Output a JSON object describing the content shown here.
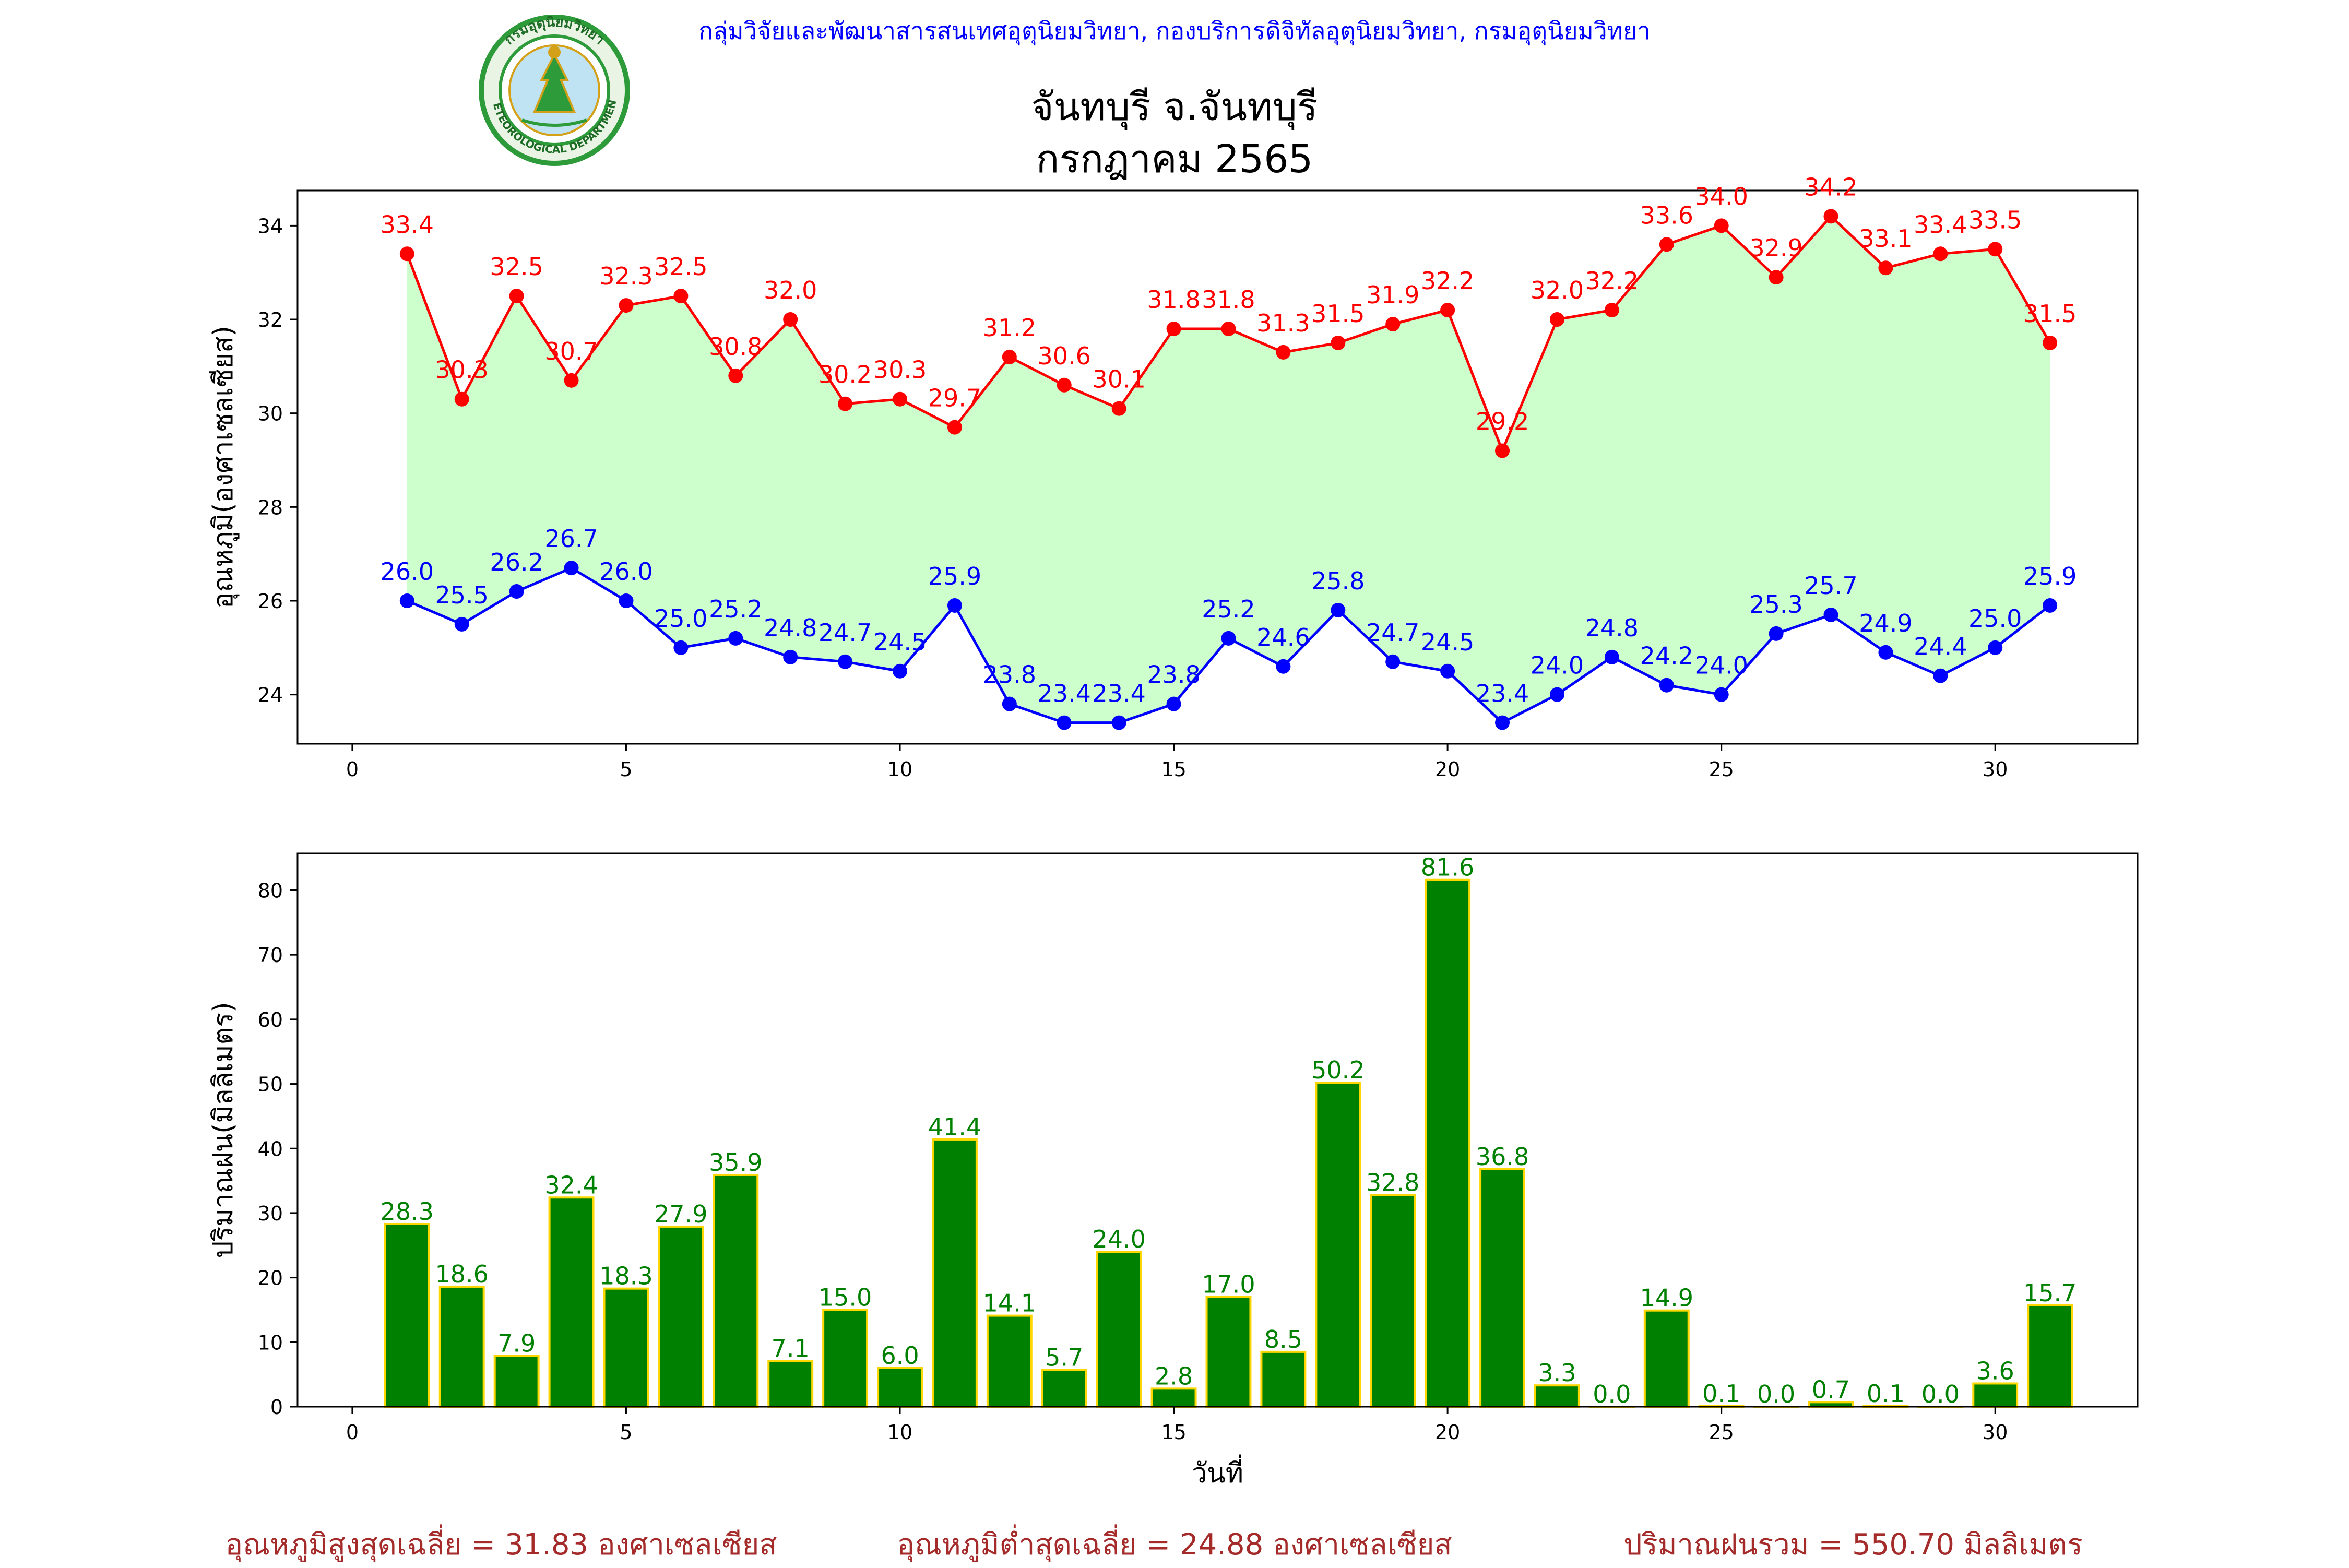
{
  "header": {
    "org_line": "กลุ่มวิจัยและพัฒนาสารสนเทศอุตุนิยมวิทยา, กองบริการดิจิทัลอุตุนิยมวิทยา, กรมอุตุนิยมวิทยา",
    "title_line1": "จันทบุรี จ.จันทบุรี",
    "title_line2": "กรกฎาคม 2565",
    "logo_text": "กรมอุตุนิยมวิทยา",
    "logo_text_en": "METEOROLOGICAL DEPARTMENT"
  },
  "colors": {
    "org_line": "#0000ff",
    "max_temp": "#ff0000",
    "min_temp": "#0000ff",
    "temp_band": "#ccffcc",
    "rain_bar": "#008000",
    "rain_bar_edge": "#ffd700",
    "rain_label": "#008000",
    "footer": "#a52a2a",
    "logo_green": "#2e9b3a",
    "logo_gold": "#d4a017"
  },
  "chart_data": [
    {
      "type": "line",
      "ylabel": "อุณหภูมิ(องศาเซลเซียส)",
      "xlabel": "",
      "xlim": [
        -1,
        32.6
      ],
      "ylim": [
        22.95,
        34.75
      ],
      "xticks": [
        0,
        5,
        10,
        15,
        20,
        25,
        30
      ],
      "yticks": [
        24,
        26,
        28,
        30,
        32,
        34
      ],
      "grid": false,
      "fill_between": true,
      "x": [
        1,
        2,
        3,
        4,
        5,
        6,
        7,
        8,
        9,
        10,
        11,
        12,
        13,
        14,
        15,
        16,
        17,
        18,
        19,
        20,
        21,
        22,
        23,
        24,
        25,
        26,
        27,
        28,
        29,
        30,
        31
      ],
      "series": [
        {
          "key": "max",
          "values": [
            33.4,
            30.3,
            32.5,
            30.7,
            32.3,
            32.5,
            30.8,
            32.0,
            30.2,
            30.3,
            29.7,
            31.2,
            30.6,
            30.1,
            31.8,
            31.8,
            31.3,
            31.5,
            31.9,
            32.2,
            29.2,
            32.0,
            32.2,
            33.6,
            34.0,
            32.9,
            34.2,
            33.1,
            33.4,
            33.5,
            31.5
          ]
        },
        {
          "key": "min",
          "values": [
            26.0,
            25.5,
            26.2,
            26.7,
            26.0,
            25.0,
            25.2,
            24.8,
            24.7,
            24.5,
            25.9,
            23.8,
            23.4,
            23.4,
            23.8,
            25.2,
            24.6,
            25.8,
            24.7,
            24.5,
            23.4,
            24.0,
            24.8,
            24.2,
            24.0,
            25.3,
            25.7,
            24.9,
            24.4,
            25.0,
            25.9
          ]
        }
      ]
    },
    {
      "type": "bar",
      "ylabel": "ปริมาณฝน(มิลลิเมตร)",
      "xlabel": "วันที่",
      "xlim": [
        -1,
        32.6
      ],
      "ylim": [
        0,
        85.7
      ],
      "xticks": [
        0,
        5,
        10,
        15,
        20,
        25,
        30
      ],
      "yticks": [
        0,
        10,
        20,
        30,
        40,
        50,
        60,
        70,
        80
      ],
      "grid": false,
      "x": [
        1,
        2,
        3,
        4,
        5,
        6,
        7,
        8,
        9,
        10,
        11,
        12,
        13,
        14,
        15,
        16,
        17,
        18,
        19,
        20,
        21,
        22,
        23,
        24,
        25,
        26,
        27,
        28,
        29,
        30,
        31
      ],
      "values": [
        28.3,
        18.6,
        7.9,
        32.4,
        18.3,
        27.9,
        35.9,
        7.1,
        15.0,
        6.0,
        41.4,
        14.1,
        5.7,
        24.0,
        2.8,
        17.0,
        8.5,
        50.2,
        32.8,
        81.6,
        36.8,
        3.3,
        0.0,
        14.9,
        0.1,
        0.0,
        0.7,
        0.1,
        0.0,
        3.6,
        15.7
      ]
    }
  ],
  "footer": {
    "avg_max": "อุณหภูมิสูงสุดเฉลี่ย = 31.83 องศาเซลเซียส",
    "avg_min": "อุณหภูมิต่ำสุดเฉลี่ย = 24.88 องศาเซลเซียส",
    "rain_total": "ปริมาณฝนรวม = 550.70 มิลลิเมตร"
  }
}
